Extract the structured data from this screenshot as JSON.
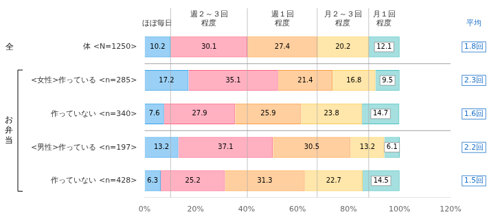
{
  "chart_data": {
    "type": "bar",
    "orientation": "horizontal",
    "stacked": true,
    "data_labels": true,
    "grid": false,
    "categories": [
      "体 <N=1250>",
      "<女性>作っている <n=285>",
      "作っていない <n=340>",
      "<男性>作っている <n=197>",
      "作っていない <n=428>"
    ],
    "series": [
      {
        "name": "ほぼ毎日",
        "values": [
          10.2,
          17.2,
          7.6,
          13.2,
          6.3
        ]
      },
      {
        "name": "週２～３回\n程度",
        "values": [
          30.1,
          35.1,
          27.9,
          37.1,
          25.2
        ]
      },
      {
        "name": "週１回\n程度",
        "values": [
          27.4,
          21.4,
          25.9,
          30.5,
          31.3
        ]
      },
      {
        "name": "月２～３回\n程度",
        "values": [
          20.2,
          16.8,
          23.8,
          13.2,
          22.7
        ]
      },
      {
        "name": "月１回\n程度",
        "values": [
          12.1,
          9.5,
          14.7,
          6.1,
          14.5
        ]
      }
    ],
    "xlim": [
      0,
      120
    ],
    "xticks": [
      {
        "value": 0,
        "label": "0%"
      },
      {
        "value": 20,
        "label": "20%"
      },
      {
        "value": 40,
        "label": "40%"
      },
      {
        "value": 60,
        "label": "60%"
      },
      {
        "value": 80,
        "label": "80%"
      },
      {
        "value": 100,
        "label": "100%"
      },
      {
        "value": 120,
        "label": "120%"
      }
    ],
    "averages": {
      "title": "平均",
      "labels": [
        "1.8回",
        "2.3回",
        "1.6回",
        "2.2回",
        "1.5回"
      ],
      "color": "#1a70c8"
    },
    "annotations": [
      {
        "text": "全",
        "row": 0
      },
      {
        "text": "お\n弁\n当",
        "rows": [
          1,
          4
        ]
      }
    ]
  }
}
